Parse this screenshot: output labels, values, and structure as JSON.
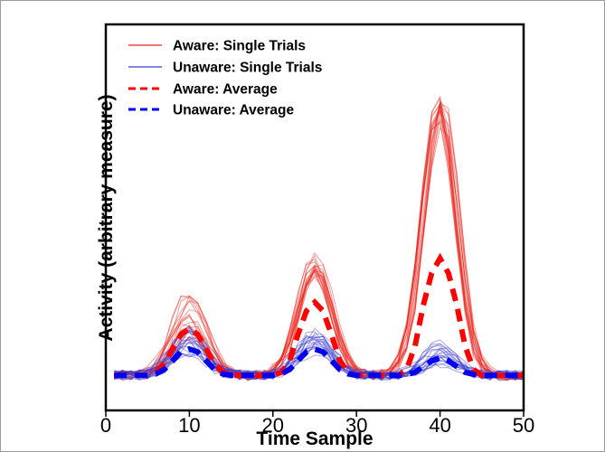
{
  "chart_data": {
    "type": "line",
    "title": "",
    "xlabel": "Time Sample",
    "ylabel": "Activity (arbitrary measure)",
    "xlim": [
      0,
      50
    ],
    "ylim": [
      -0.12,
      1.2
    ],
    "x_ticks": [
      0,
      10,
      20,
      30,
      40,
      50
    ],
    "grid": false,
    "legend_position": "top-left",
    "x": [
      1,
      2,
      3,
      4,
      5,
      6,
      7,
      8,
      9,
      10,
      11,
      12,
      13,
      14,
      15,
      16,
      17,
      18,
      19,
      20,
      21,
      22,
      23,
      24,
      25,
      26,
      27,
      28,
      29,
      30,
      31,
      32,
      33,
      34,
      35,
      36,
      37,
      38,
      39,
      40,
      41,
      42,
      43,
      44,
      45,
      46,
      47,
      48,
      49,
      50
    ],
    "series": [
      {
        "name": "Aware: Single Trials",
        "style": "solid-thin",
        "color": "#e8281e",
        "n_trials": 20,
        "peak_times": [
          10,
          25,
          40
        ],
        "peak_min": [
          0.12,
          0.34,
          0.87
        ],
        "peak_max": [
          0.3,
          0.41,
          0.96
        ]
      },
      {
        "name": "Unaware: Single Trials",
        "style": "solid-thin",
        "color": "#3a3acd",
        "n_trials": 20,
        "peak_times": [
          10,
          25,
          40
        ],
        "peak_min": [
          0.06,
          0.08,
          0.04
        ],
        "peak_max": [
          0.17,
          0.15,
          0.11
        ]
      },
      {
        "name": "Aware: Average",
        "style": "dashed-thick",
        "color": "#ff0000",
        "values": [
          0.0,
          0.0,
          0.0,
          0.0,
          0.0,
          0.01,
          0.04,
          0.09,
          0.14,
          0.16,
          0.14,
          0.09,
          0.04,
          0.01,
          0.0,
          0.0,
          0.0,
          0.0,
          0.0,
          0.0,
          0.01,
          0.05,
          0.14,
          0.22,
          0.25,
          0.22,
          0.14,
          0.05,
          0.01,
          0.0,
          0.0,
          0.0,
          0.0,
          0.0,
          0.0,
          0.02,
          0.1,
          0.24,
          0.35,
          0.4,
          0.35,
          0.24,
          0.1,
          0.02,
          0.0,
          0.0,
          0.0,
          0.0,
          0.0,
          0.0
        ]
      },
      {
        "name": "Unaware: Average",
        "style": "dashed-thick",
        "color": "#0000ee",
        "values": [
          0.0,
          0.0,
          0.0,
          0.0,
          0.0,
          0.005,
          0.02,
          0.05,
          0.08,
          0.09,
          0.08,
          0.05,
          0.02,
          0.005,
          0.0,
          0.0,
          0.0,
          0.0,
          0.0,
          0.0,
          0.005,
          0.02,
          0.05,
          0.08,
          0.09,
          0.08,
          0.05,
          0.02,
          0.005,
          0.0,
          0.0,
          0.0,
          0.0,
          0.0,
          0.0,
          0.003,
          0.01,
          0.03,
          0.05,
          0.06,
          0.05,
          0.03,
          0.01,
          0.003,
          0.0,
          0.0,
          0.0,
          0.0,
          0.0,
          0.0
        ]
      }
    ]
  }
}
